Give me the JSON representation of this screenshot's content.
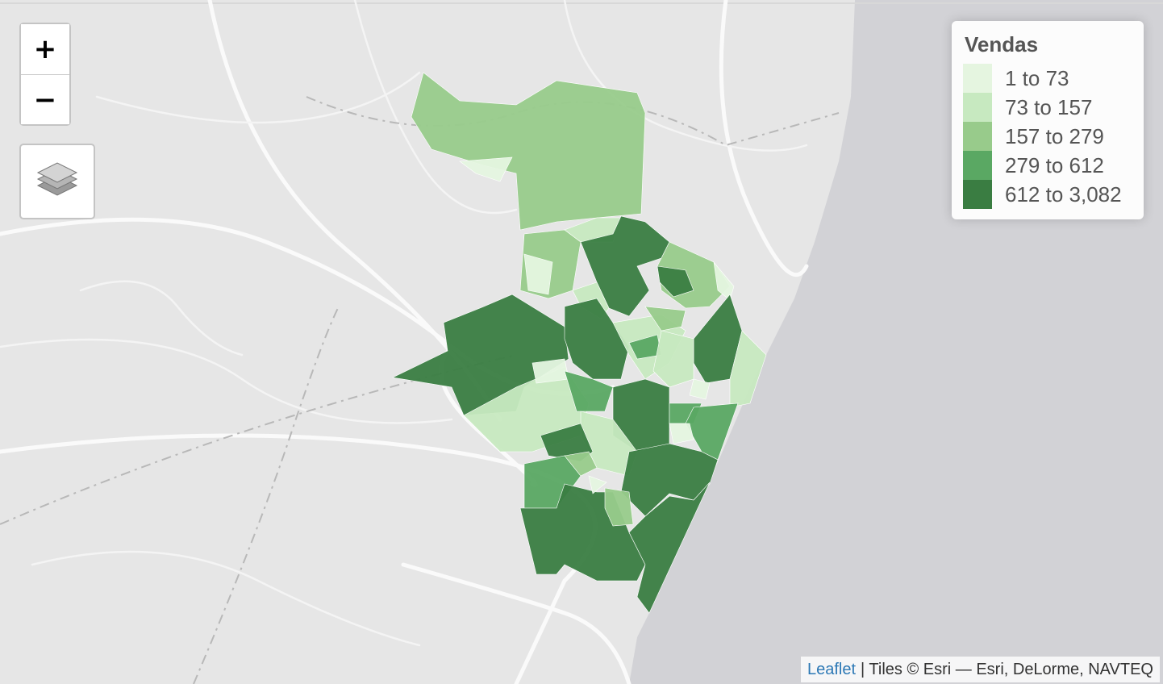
{
  "zoom_control": {
    "zoom_in": "+",
    "zoom_out": "−"
  },
  "legend": {
    "title": "Vendas",
    "items": [
      {
        "label": "1 to 73",
        "color": "#e5f5e0"
      },
      {
        "label": "73 to 157",
        "color": "#c7e9c0"
      },
      {
        "label": "157 to 279",
        "color": "#98cb8b"
      },
      {
        "label": "279 to 612",
        "color": "#5aa863"
      },
      {
        "label": "612 to 3,082",
        "color": "#3a7d42"
      }
    ]
  },
  "attribution": {
    "link": "Leaflet",
    "text": "| Tiles © Esri — Esri, DeLorme, NAVTEQ"
  }
}
